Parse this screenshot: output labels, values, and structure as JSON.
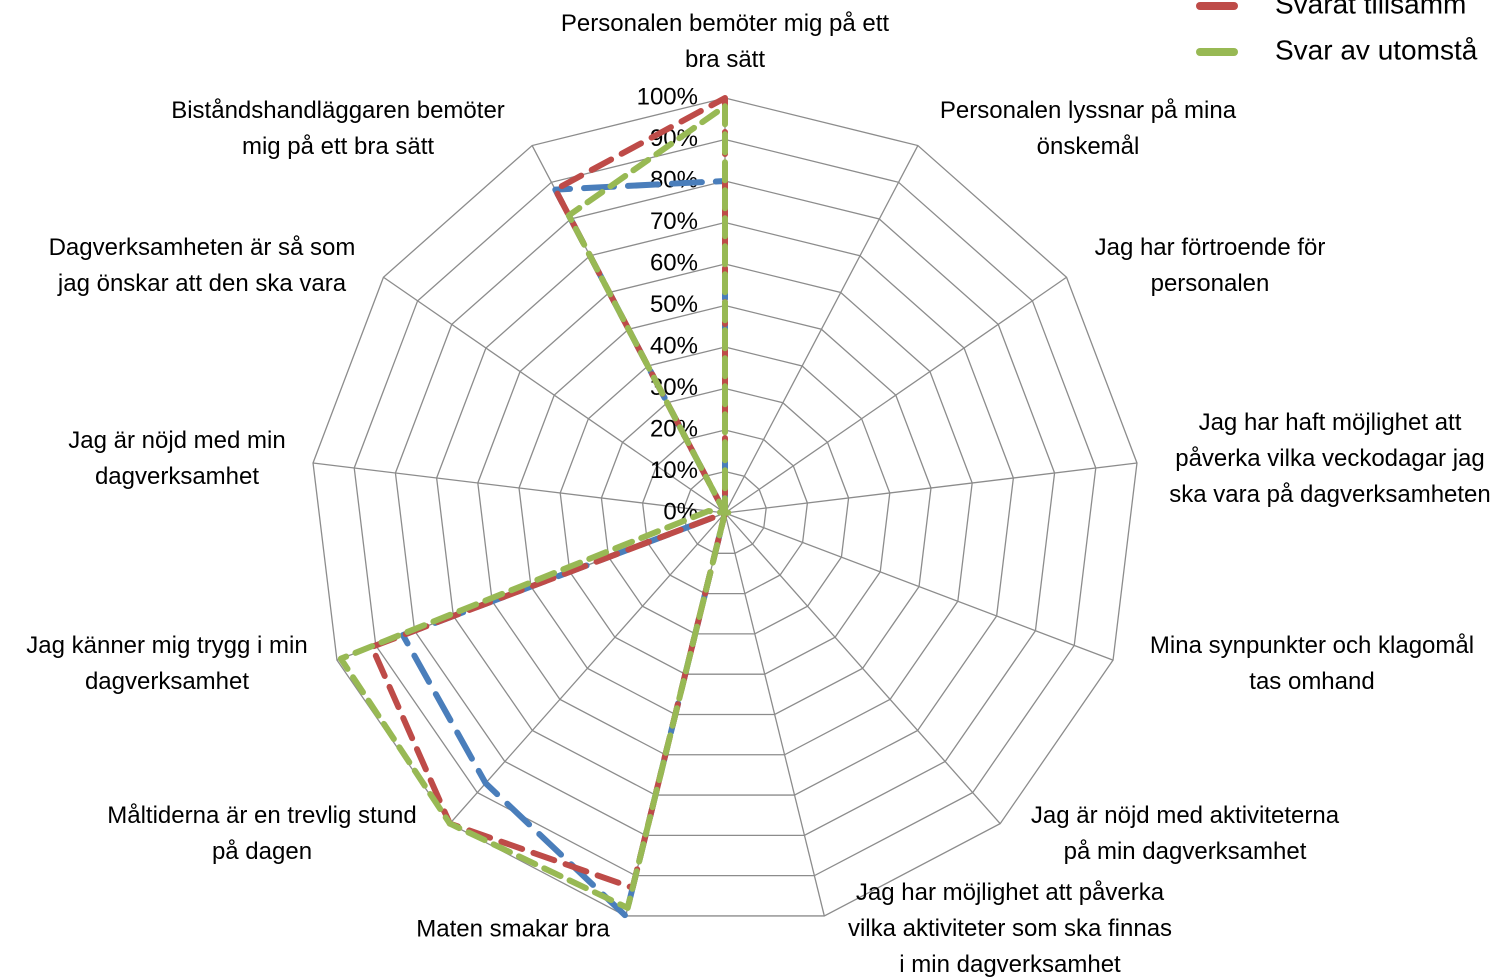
{
  "chart_data": {
    "type": "radar",
    "categories": [
      "Personalen bemöter mig på ett\nbra sätt",
      "Personalen lyssnar på mina\nönskemål",
      "Jag har förtroende för\npersonalen",
      "Jag har haft möjlighet att\npåverka vilka veckodagar jag\nska vara på dagverksamheten",
      "Mina synpunkter och klagomål\ntas omhand",
      "Jag är nöjd med aktiviteterna\npå min dagverksamhet",
      "Jag har möjlighet att påverka\nvilka aktiviteter som ska finnas\ni min dagverksamhet",
      "Maten smakar bra",
      "Måltiderna är en trevlig stund\npå dagen",
      "Jag känner mig trygg i min\ndagverksamhet",
      "Jag är nöjd med min\ndagverksamhet",
      "Dagverksamheten är så som\njag önskar att den ska vara",
      "Biståndshandläggaren bemöter\nmig på ett bra sätt"
    ],
    "series": [
      {
        "color": "#4a7ebb",
        "dash": "30 14",
        "values": [
          80,
          0,
          0,
          0,
          0,
          0,
          0,
          100,
          87,
          83,
          0,
          0,
          88
        ]
      },
      {
        "name": "Svarat tillsamm",
        "color": "#be4b48",
        "dash": "22 12",
        "values": [
          100,
          0,
          0,
          0,
          0,
          0,
          0,
          93,
          100,
          91,
          0,
          0,
          88
        ]
      },
      {
        "name": "Svar av utomstå",
        "color": "#98b954",
        "dash": "18 10",
        "values": [
          98,
          0,
          0,
          1,
          0,
          0,
          0,
          98,
          100,
          99,
          4,
          0,
          81
        ]
      }
    ],
    "ylim": [
      0,
      100
    ],
    "yticks": [
      {
        "value": 0,
        "label": "0%"
      },
      {
        "value": 10,
        "label": "10%"
      },
      {
        "value": 20,
        "label": "20%"
      },
      {
        "value": 30,
        "label": "30%"
      },
      {
        "value": 40,
        "label": "40%"
      },
      {
        "value": 50,
        "label": "50%"
      },
      {
        "value": 60,
        "label": "60%"
      },
      {
        "value": 70,
        "label": "70%"
      },
      {
        "value": 80,
        "label": "80%"
      },
      {
        "value": 90,
        "label": "90%"
      },
      {
        "value": 100,
        "label": "100%"
      }
    ],
    "grid": true
  }
}
